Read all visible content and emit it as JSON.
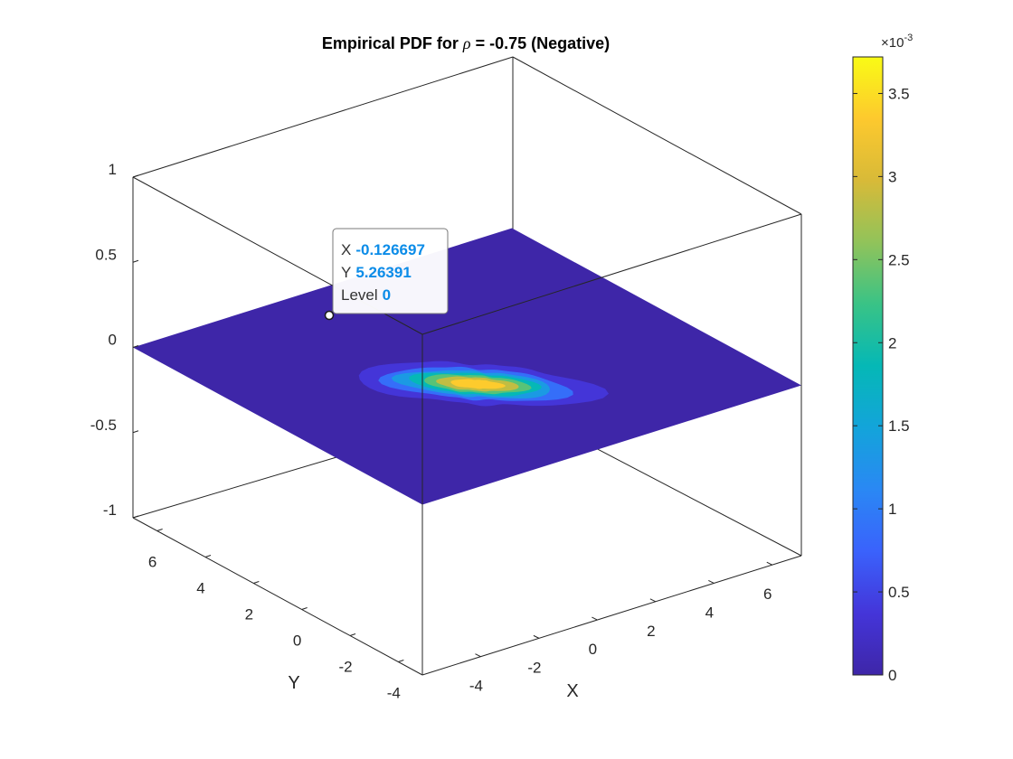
{
  "chart_data": {
    "type": "contour",
    "title": "Empirical PDF for ρ = -0.75 (Negative)",
    "title_parts": {
      "before": "Empirical PDF for ",
      "symbol": "ρ",
      "after": " = -0.75 (Negative)"
    },
    "xlabel": "X",
    "ylabel": "Y",
    "x_ticks": [
      "-4",
      "-2",
      "0",
      "2",
      "4",
      "6"
    ],
    "y_ticks": [
      "-4",
      "-2",
      "0",
      "2",
      "4",
      "6"
    ],
    "z_ticks": [
      "-1",
      "-0.5",
      "0",
      "0.5",
      "1"
    ],
    "xlim": [
      -6,
      7
    ],
    "ylim": [
      -5,
      7
    ],
    "zlim": [
      -1,
      1
    ],
    "colorbar": {
      "ticks": [
        "0",
        "0.5",
        "1",
        "1.5",
        "2",
        "2.5",
        "3",
        "3.5"
      ],
      "tick_values": [
        0,
        0.5,
        1,
        1.5,
        2,
        2.5,
        3,
        3.5
      ],
      "range": [
        0,
        3.72
      ],
      "exponent_base": "×10",
      "exponent_power": "-3",
      "colormap": "parula"
    },
    "density_peak": {
      "x": 0,
      "y": 0,
      "value": 3.7
    },
    "contour_levels": [
      0.25,
      0.75,
      1.25,
      1.75,
      2.25,
      2.75,
      3.25
    ],
    "datatip": {
      "x_key": "X",
      "x_value": "-0.126697",
      "y_key": "Y",
      "y_value": "5.26391",
      "level_key": "Level",
      "level_value": "0"
    }
  }
}
